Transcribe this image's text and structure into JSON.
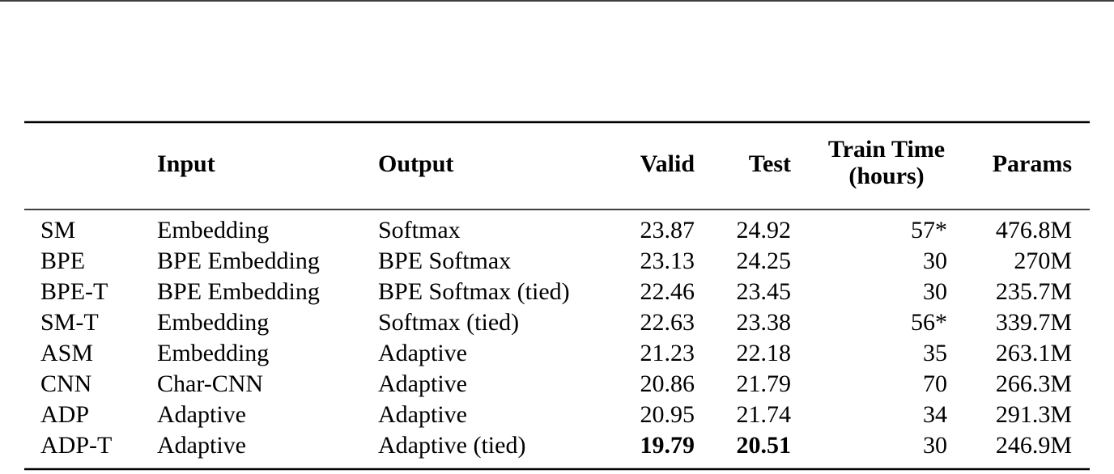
{
  "table": {
    "columns": [
      "Input",
      "Output",
      "Valid",
      "Test",
      [
        "Train Time",
        "(hours)"
      ],
      "Params"
    ],
    "rows": [
      [
        "SM",
        "Embedding",
        "Softmax",
        "23.87",
        "24.92",
        "57*",
        "476.8M"
      ],
      [
        "BPE",
        "BPE Embedding",
        "BPE Softmax",
        "23.13",
        "24.25",
        "30",
        "270M"
      ],
      [
        "BPE-T",
        "BPE Embedding",
        "BPE Softmax (tied)",
        "22.46",
        "23.45",
        "30",
        "235.7M"
      ],
      [
        "SM-T",
        "Embedding",
        "Softmax (tied)",
        "22.63",
        "23.38",
        "56*",
        "339.7M"
      ],
      [
        "ASM",
        "Embedding",
        "Adaptive",
        "21.23",
        "22.18",
        "35",
        "263.1M"
      ],
      [
        "CNN",
        "Char-CNN",
        "Adaptive",
        "20.86",
        "21.79",
        "70",
        "266.3M"
      ],
      [
        "ADP",
        "Adaptive",
        "Adaptive",
        "20.95",
        "21.74",
        "34",
        "291.3M"
      ],
      [
        "ADP-T",
        "Adaptive",
        "Adaptive (tied)",
        "19.79",
        "20.51",
        "30",
        "246.9M"
      ]
    ],
    "bold": [
      [
        7,
        3
      ],
      [
        7,
        4
      ]
    ]
  }
}
